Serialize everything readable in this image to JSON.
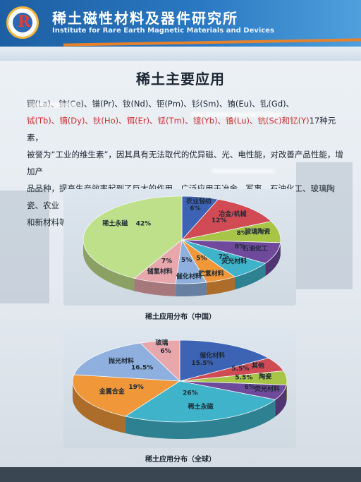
{
  "header": {
    "institute_cn": "稀土磁性材料及器件研究所",
    "institute_en": "Institute for Rare Earth Magnetic Materials and Devices",
    "logo_letter": "R"
  },
  "title": "稀土主要应用",
  "paragraph": {
    "line1": "镧(La)、铈(Ce)、镨(Pr)、钕(Nd)、钷(Pm)、钐(Sm)、铕(Eu)、钆(Gd)、",
    "line2_red": "铽(Tb)、镝(Dy)、钬(Ho)、铒(Er)、铥(Tm)、镱(Yb)、镥(Lu)、钪(Sc)和钇(Y)",
    "line2_tail": "17种元素，",
    "line3": "被誉为“工业的维生素”，因其具有无法取代的优异磁、光、电性能，对改善产品性能，增加产",
    "line4": "品品种，提高生产效率起到了巨大的作用，广泛应用于冶金、军事、石油化工、玻璃陶瓷、农业",
    "line5": "和新材料等领域。"
  },
  "chart_data": [
    {
      "type": "pie",
      "title": "稀土应用分布（中国）",
      "slices": [
        {
          "label": "农业轻纺",
          "value": 6,
          "text": "6%",
          "color": "#3d63b4"
        },
        {
          "label": "冶金/机械",
          "value": 12,
          "text": "12%",
          "color": "#d14b55"
        },
        {
          "label": "玻璃陶瓷",
          "value": 8,
          "text": "8%",
          "color": "#a8c548"
        },
        {
          "label": "石油化工",
          "value": 8,
          "text": "8%",
          "color": "#6f4a9c"
        },
        {
          "label": "荧光材料",
          "value": 7,
          "text": "7%",
          "color": "#3fb3c9"
        },
        {
          "label": "贮氢材料",
          "value": 5,
          "text": "5%",
          "color": "#f0973a"
        },
        {
          "label": "催化材料",
          "value": 5,
          "text": "5%",
          "color": "#8fb0de"
        },
        {
          "label": "储氢材料",
          "value": 7,
          "text": "7%",
          "color": "#e8a7ab"
        },
        {
          "label": "稀土永磁",
          "value": 42,
          "text": "42%",
          "color": "#bfe08a"
        }
      ]
    },
    {
      "type": "pie",
      "title": "稀土应用分布（全球）",
      "slices": [
        {
          "label": "催化材料",
          "value": 15.5,
          "text": "15.5%",
          "color": "#3d63b4"
        },
        {
          "label": "其他",
          "value": 5.5,
          "text": "5.5%",
          "color": "#d14b55"
        },
        {
          "label": "陶瓷",
          "value": 5.5,
          "text": "5.5%",
          "color": "#a8c548"
        },
        {
          "label": "荧光材料",
          "value": 6,
          "text": "6%",
          "color": "#6f4a9c"
        },
        {
          "label": "稀土永磁",
          "value": 26,
          "text": "26%",
          "color": "#3fb3c9"
        },
        {
          "label": "金属合金",
          "value": 19,
          "text": "19%",
          "color": "#f0973a"
        },
        {
          "label": "抛光材料",
          "value": 16.5,
          "text": "16.5%",
          "color": "#8fb0de"
        },
        {
          "label": "玻璃",
          "value": 6,
          "text": "6%",
          "color": "#e8a7ab"
        }
      ]
    }
  ]
}
